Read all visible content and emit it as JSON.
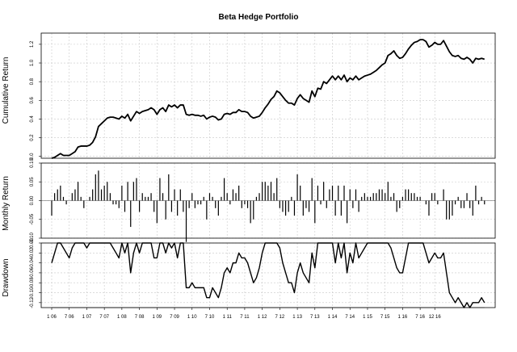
{
  "chart_data": [
    {
      "type": "line",
      "title": "Beta Hedge Portfolio",
      "ylabel": "Cumulative Return",
      "ylim": [
        -0.02,
        1.32
      ],
      "yticks": [
        0.0,
        0.2,
        0.4,
        0.6,
        0.8,
        1.0,
        1.2
      ],
      "ytick_labels": [
        "0.0",
        "0.2",
        "0.4",
        "0.6",
        "0.8",
        "1.0",
        "1.2"
      ],
      "grid": true,
      "series": [
        {
          "values": [
            -0.02,
            -0.01,
            0.01,
            0.03,
            0.01,
            0.01,
            0.01,
            0.03,
            0.05,
            0.1,
            0.11,
            0.11,
            0.11,
            0.12,
            0.15,
            0.21,
            0.32,
            0.35,
            0.38,
            0.41,
            0.42,
            0.42,
            0.41,
            0.4,
            0.43,
            0.41,
            0.45,
            0.38,
            0.43,
            0.48,
            0.46,
            0.48,
            0.49,
            0.5,
            0.52,
            0.5,
            0.45,
            0.5,
            0.52,
            0.48,
            0.55,
            0.53,
            0.55,
            0.52,
            0.55,
            0.55,
            0.45,
            0.44,
            0.45,
            0.44,
            0.44,
            0.43,
            0.44,
            0.4,
            0.42,
            0.43,
            0.42,
            0.39,
            0.4,
            0.45,
            0.46,
            0.45,
            0.47,
            0.47,
            0.5,
            0.48,
            0.48,
            0.47,
            0.43,
            0.41,
            0.42,
            0.43,
            0.47,
            0.52,
            0.56,
            0.61,
            0.64,
            0.7,
            0.68,
            0.64,
            0.6,
            0.57,
            0.57,
            0.55,
            0.62,
            0.66,
            0.62,
            0.6,
            0.58,
            0.7,
            0.64,
            0.73,
            0.72,
            0.8,
            0.78,
            0.82,
            0.86,
            0.82,
            0.86,
            0.82,
            0.87,
            0.8,
            0.84,
            0.82,
            0.86,
            0.82,
            0.84,
            0.86,
            0.87,
            0.88,
            0.9,
            0.92,
            0.95,
            0.98,
            1.0,
            1.08,
            1.1,
            1.13,
            1.08,
            1.05,
            1.06,
            1.1,
            1.15,
            1.19,
            1.22,
            1.23,
            1.25,
            1.25,
            1.23,
            1.17,
            1.19,
            1.22,
            1.2,
            1.2,
            1.24,
            1.18,
            1.12,
            1.08,
            1.07,
            1.08,
            1.05,
            1.04,
            1.06,
            1.04,
            1.0,
            1.05,
            1.04,
            1.05,
            1.04
          ]
        }
      ]
    },
    {
      "type": "bar",
      "ylabel": "Monthly Return",
      "ylim": [
        -0.1,
        0.1
      ],
      "yticks": [
        -0.1,
        -0.05,
        0.0,
        0.05,
        0.1
      ],
      "ytick_labels": [
        "-0.10",
        "-0.05",
        "0.00",
        "0.05",
        "0.10"
      ],
      "grid": true,
      "series": [
        {
          "values": [
            -0.04,
            0.02,
            0.03,
            0.04,
            0.01,
            -0.01,
            0.0,
            0.02,
            0.03,
            0.05,
            0.01,
            -0.02,
            0.0,
            0.01,
            0.03,
            0.07,
            0.08,
            0.03,
            0.04,
            0.05,
            0.02,
            -0.01,
            -0.01,
            -0.02,
            0.04,
            -0.03,
            0.05,
            -0.07,
            0.05,
            0.06,
            -0.03,
            0.02,
            0.01,
            0.01,
            0.02,
            -0.03,
            -0.06,
            0.06,
            0.02,
            -0.05,
            0.07,
            -0.03,
            0.03,
            -0.04,
            0.03,
            -0.03,
            -0.11,
            -0.02,
            0.02,
            -0.02,
            -0.01,
            -0.01,
            0.01,
            -0.05,
            0.02,
            0.01,
            -0.02,
            -0.04,
            0.01,
            0.06,
            0.02,
            -0.01,
            0.03,
            0.02,
            0.04,
            -0.02,
            -0.01,
            -0.02,
            -0.06,
            -0.05,
            0.01,
            0.02,
            0.05,
            0.05,
            0.04,
            0.05,
            0.02,
            0.06,
            -0.02,
            -0.03,
            -0.04,
            -0.03,
            0.01,
            -0.04,
            0.07,
            0.04,
            -0.04,
            -0.02,
            -0.03,
            0.06,
            -0.06,
            0.04,
            -0.01,
            0.05,
            -0.02,
            0.03,
            0.04,
            -0.04,
            0.04,
            -0.04,
            0.04,
            -0.06,
            0.03,
            -0.02,
            0.03,
            -0.03,
            0.01,
            0.02,
            0.01,
            0.01,
            0.02,
            0.02,
            0.03,
            0.03,
            0.02,
            0.05,
            0.01,
            0.02,
            -0.03,
            -0.02,
            0.01,
            0.03,
            0.03,
            0.02,
            0.02,
            0.01,
            0.01,
            0.0,
            -0.01,
            -0.04,
            0.02,
            0.02,
            -0.01,
            0.0,
            0.03,
            -0.05,
            -0.05,
            -0.04,
            -0.01,
            0.01,
            -0.02,
            -0.02,
            0.02,
            -0.02,
            -0.04,
            0.04,
            -0.01,
            0.01,
            -0.01
          ]
        }
      ]
    },
    {
      "type": "line",
      "ylabel": "Drawdown",
      "xlabel": "",
      "ylim": [
        -0.13,
        0.0
      ],
      "yticks": [
        -0.12,
        -0.1,
        -0.08,
        -0.06,
        -0.04,
        -0.02,
        0.0
      ],
      "ytick_labels": [
        "-0.12",
        "-0.10",
        "-0.08",
        "-0.06",
        "-0.04",
        "-0.02",
        "0.00"
      ],
      "x_tick_labels": [
        "1 06",
        "7 06",
        "1 07",
        "7 07",
        "1 08",
        "7 08",
        "1 09",
        "7 09",
        "1 10",
        "7 10",
        "1 11",
        "7 11",
        "1 12",
        "7 12",
        "1 13",
        "7 13",
        "1 14",
        "7 14",
        "1 15",
        "7 15",
        "1 16",
        "7 16",
        "12 16"
      ],
      "grid": true,
      "series": [
        {
          "values": [
            -0.04,
            -0.02,
            0.0,
            0.0,
            -0.01,
            -0.02,
            -0.03,
            -0.01,
            0.0,
            0.0,
            0.0,
            0.0,
            -0.01,
            0.0,
            0.0,
            0.0,
            0.0,
            0.0,
            0.0,
            0.0,
            0.0,
            -0.01,
            -0.02,
            -0.03,
            0.0,
            -0.02,
            0.0,
            -0.06,
            -0.02,
            0.0,
            -0.02,
            0.0,
            0.0,
            0.0,
            0.0,
            -0.03,
            -0.03,
            0.0,
            0.0,
            -0.02,
            0.0,
            -0.01,
            0.0,
            -0.03,
            0.0,
            0.0,
            -0.09,
            -0.09,
            -0.08,
            -0.09,
            -0.09,
            -0.09,
            -0.09,
            -0.11,
            -0.11,
            -0.09,
            -0.1,
            -0.11,
            -0.09,
            -0.06,
            -0.05,
            -0.06,
            -0.04,
            -0.04,
            -0.02,
            -0.03,
            -0.03,
            -0.04,
            -0.06,
            -0.08,
            -0.07,
            -0.05,
            -0.02,
            0.0,
            0.0,
            0.0,
            0.0,
            0.0,
            -0.01,
            -0.04,
            -0.06,
            -0.08,
            -0.08,
            -0.1,
            -0.06,
            -0.04,
            -0.06,
            -0.07,
            -0.08,
            -0.02,
            -0.05,
            0.0,
            0.0,
            0.0,
            0.0,
            0.0,
            0.0,
            -0.04,
            0.0,
            -0.03,
            0.0,
            -0.06,
            -0.02,
            -0.04,
            0.0,
            -0.03,
            -0.02,
            -0.01,
            0.0,
            0.0,
            0.0,
            0.0,
            0.0,
            0.0,
            0.0,
            0.0,
            -0.01,
            -0.03,
            -0.05,
            -0.06,
            -0.06,
            -0.03,
            0.0,
            0.0,
            0.0,
            0.0,
            0.0,
            0.0,
            -0.02,
            -0.04,
            -0.03,
            -0.02,
            -0.03,
            -0.03,
            -0.02,
            -0.06,
            -0.1,
            -0.11,
            -0.12,
            -0.11,
            -0.12,
            -0.13,
            -0.12,
            -0.13,
            -0.12,
            -0.12,
            -0.12,
            -0.11,
            -0.12
          ]
        }
      ]
    }
  ]
}
